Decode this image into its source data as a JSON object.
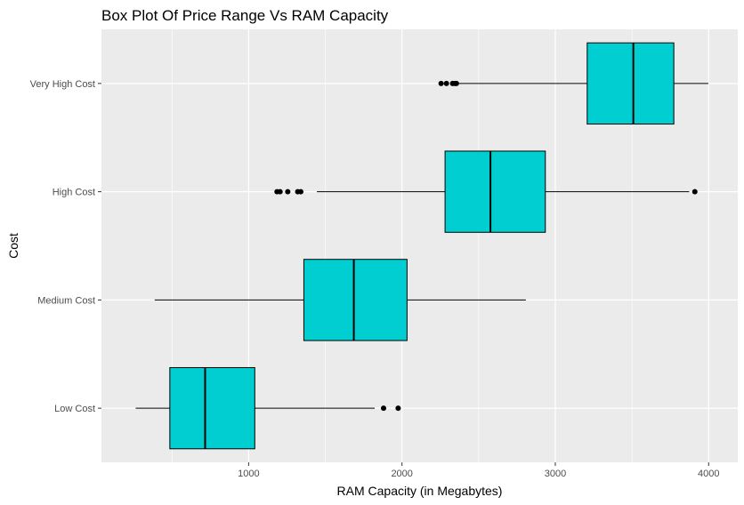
{
  "chart_data": {
    "type": "boxplot",
    "orientation": "horizontal",
    "title": "Box Plot Of Price Range Vs RAM Capacity",
    "xlabel": "RAM Capacity (in Megabytes)",
    "ylabel": "Cost",
    "xlim": [
      40,
      4190
    ],
    "xticks": [
      1000,
      2000,
      3000,
      4000
    ],
    "xtick_labels": [
      "1000",
      "2000",
      "3000",
      "4000"
    ],
    "grid": true,
    "legend": "none",
    "colors": {
      "box_fill": "#00CED1",
      "panel": "#EBEBEB",
      "grid": "#FFFFFF",
      "line": "#000000"
    },
    "categories": [
      "Low Cost",
      "Medium Cost",
      "High Cost",
      "Very High Cost"
    ],
    "boxes": [
      {
        "category": "Low Cost",
        "whisker_low": 263,
        "q1": 486,
        "median": 716,
        "q3": 1040,
        "whisker_high": 1822,
        "outliers": [
          1880,
          1975
        ]
      },
      {
        "category": "Medium Cost",
        "whisker_low": 387,
        "q1": 1360,
        "median": 1686,
        "q3": 2033,
        "whisker_high": 2808,
        "outliers": []
      },
      {
        "category": "High Cost",
        "whisker_low": 1445,
        "q1": 2281,
        "median": 2577,
        "q3": 2935,
        "whisker_high": 3873,
        "outliers": [
          1185,
          1205,
          1255,
          1320,
          1340,
          3910
        ]
      },
      {
        "category": "Very High Cost",
        "whisker_low": 2367,
        "q1": 3208,
        "median": 3509,
        "q3": 3773,
        "whisker_high": 3998,
        "outliers": [
          2255,
          2290,
          2330,
          2345,
          2355
        ]
      }
    ]
  }
}
